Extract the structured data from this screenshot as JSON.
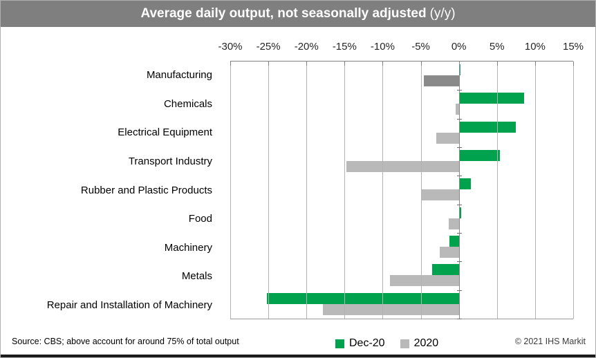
{
  "title": {
    "main": "Average daily output, not seasonally adjusted",
    "suffix": "(y/y)"
  },
  "colors": {
    "title_bg": "#7f7f7f",
    "title_text": "#ffffff",
    "dec20_green": "#00a24e",
    "gray_2020": "#b9b9b9",
    "gray_2020_dark_manufacturing": "#8a8a8a",
    "teal_manufacturing_dec20": "#2e9ea4",
    "gridline": "#b3b3b3",
    "axis_line": "#7f7f7f"
  },
  "chart_data": {
    "type": "bar",
    "orientation": "horizontal",
    "title": "Average daily output, not seasonally adjusted (y/y)",
    "x_axis": {
      "min": -30,
      "max": 15,
      "tick_values": [
        -30,
        -25,
        -20,
        -15,
        -10,
        -5,
        0,
        5,
        10,
        15
      ],
      "tick_labels": [
        "-30%",
        "-25%",
        "-20%",
        "-15%",
        "-10%",
        "-5%",
        "0%",
        "5%",
        "10%",
        "15%"
      ],
      "grid": true
    },
    "categories": [
      "Manufacturing",
      "Chemicals",
      "Electrical Equipment",
      "Transport Industry",
      "Rubber and Plastic Products",
      "Food",
      "Machinery",
      "Metals",
      "Repair and Installation of Machinery"
    ],
    "series": [
      {
        "name": "Dec-20",
        "color": "#00a24e",
        "values": [
          0.1,
          8.6,
          7.5,
          5.4,
          1.6,
          0.3,
          -1.2,
          -3.5,
          -25.2
        ],
        "value_colors": {
          "0": "#2e9ea4"
        }
      },
      {
        "name": "2020",
        "color": "#b9b9b9",
        "values": [
          -4.6,
          -0.4,
          -3.0,
          -14.8,
          -5.0,
          -1.3,
          -2.5,
          -9.0,
          -17.8
        ],
        "value_colors": {
          "0": "#8a8a8a"
        }
      }
    ],
    "legend_position": "bottom"
  },
  "footer": {
    "source": "Source: CBS; above account for around 75% of total output",
    "copyright": "© 2021 IHS Markit"
  }
}
